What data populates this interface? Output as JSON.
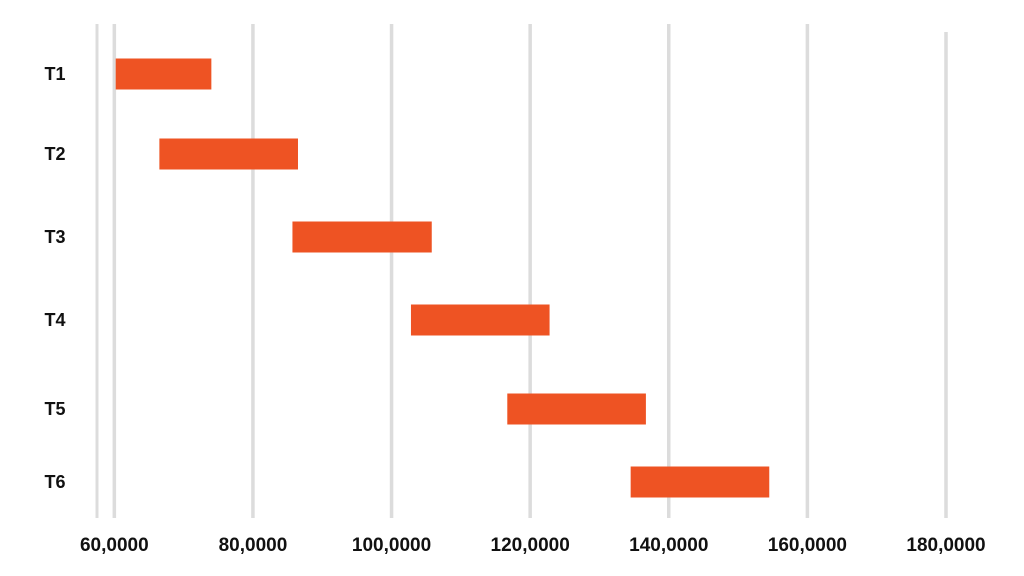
{
  "chart_data": {
    "type": "bar",
    "orientation": "horizontal",
    "title": "",
    "xlabel": "",
    "ylabel": "",
    "categories": [
      "T1",
      "T2",
      "T3",
      "T4",
      "T5",
      "T6"
    ],
    "ranges": [
      [
        60200,
        74000
      ],
      [
        66500,
        86500
      ],
      [
        85700,
        105800
      ],
      [
        102800,
        122800
      ],
      [
        116700,
        136700
      ],
      [
        134500,
        154500
      ]
    ],
    "xlim": [
      57500,
      180000
    ],
    "xticks": [
      60000,
      80000,
      100000,
      120000,
      140000,
      160000,
      180000
    ],
    "xtick_labels": [
      "60,0000",
      "80,0000",
      "100,0000",
      "120,0000",
      "140,0000",
      "160,0000",
      "180,0000"
    ],
    "grid": true,
    "legend": "none",
    "colors": {
      "bar": "#ee5323",
      "grid": "#dcdcdc",
      "text": "#111111"
    }
  }
}
